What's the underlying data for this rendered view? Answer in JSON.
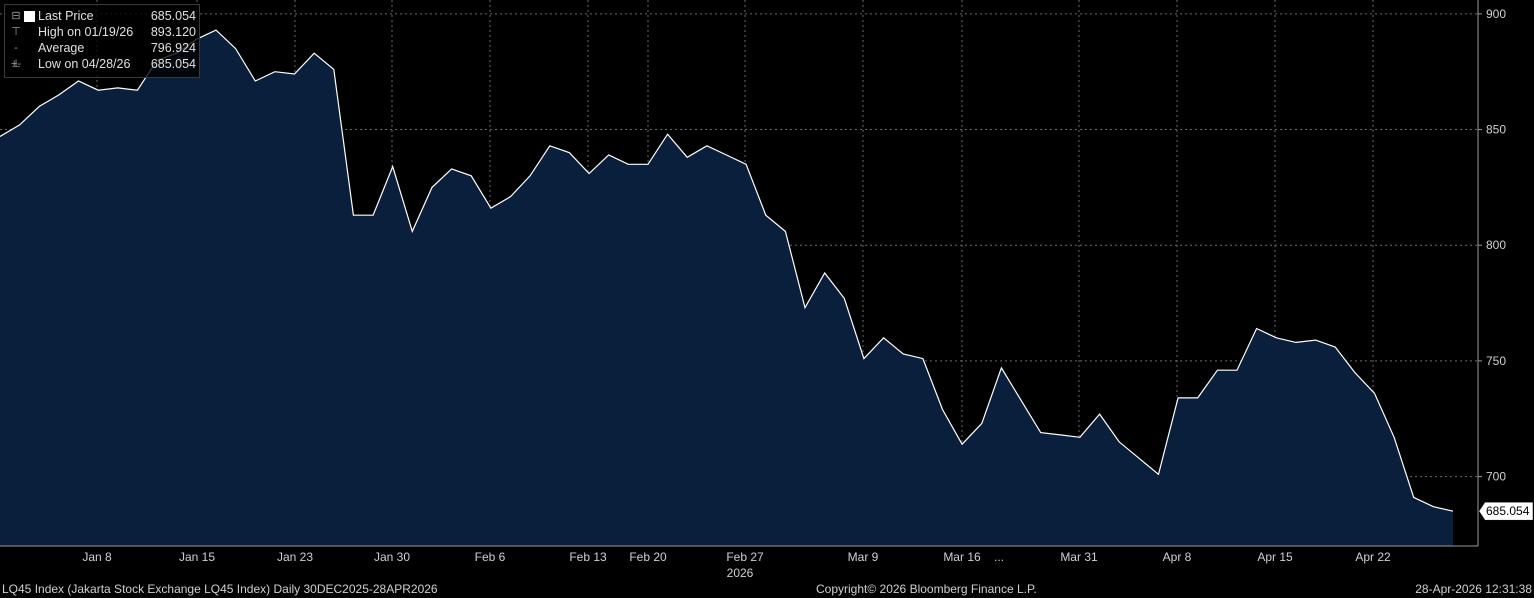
{
  "legend": {
    "last_price_label": "Last Price",
    "last_price_value": "685.054",
    "high_label": "High on 01/19/26",
    "high_value": "893.120",
    "average_label": "Average",
    "average_value": "796.924",
    "low_label": "Low on 04/28/26",
    "low_value": "685.054"
  },
  "footer": {
    "left": "LQ45 Index (Jakarta Stock Exchange LQ45 Index) Daily 30DEC2025-28APR2026",
    "center": "Copyright© 2026 Bloomberg Finance L.P.",
    "right": "28-Apr-2026 12:31:38"
  },
  "colors": {
    "background": "#000000",
    "area_fill": "#0a1f3c",
    "line": "#ffffff",
    "grid": "#6a6a6a",
    "text": "#d0d0d0"
  },
  "chart_data": {
    "type": "area",
    "title": "",
    "xlabel": "",
    "ylabel": "",
    "ylim": [
      670,
      906
    ],
    "y_ticks": [
      700,
      750,
      800,
      850,
      900
    ],
    "x_ticks": [
      "Jan 8",
      "Jan 15",
      "Jan 23",
      "Jan 30",
      "Feb 6",
      "Feb 13",
      "Feb 20",
      "Feb 27",
      "Mar 9",
      "Mar 16",
      "...",
      "Mar 31",
      "Apr 8",
      "Apr 15",
      "Apr 22"
    ],
    "x_year_label": "2026",
    "last_value_label": "685.054",
    "grid": true,
    "legend_position": "top-left",
    "series": [
      {
        "values": [
          847,
          852,
          860,
          865,
          871,
          867,
          868,
          867,
          880,
          883,
          889,
          893,
          885,
          871,
          875,
          874,
          883,
          876,
          813,
          813,
          834,
          806,
          825,
          833,
          830,
          816,
          821,
          830,
          843,
          840,
          831,
          839,
          835,
          835,
          848,
          838,
          843,
          839,
          835,
          813,
          806,
          773,
          788,
          777,
          751,
          760,
          753,
          751,
          729,
          714,
          723,
          747,
          733,
          719,
          718,
          717,
          727,
          715,
          708,
          701,
          734,
          734,
          746,
          746,
          764,
          760,
          758,
          759,
          756,
          745,
          736,
          717,
          691,
          687,
          685.054
        ]
      }
    ]
  }
}
